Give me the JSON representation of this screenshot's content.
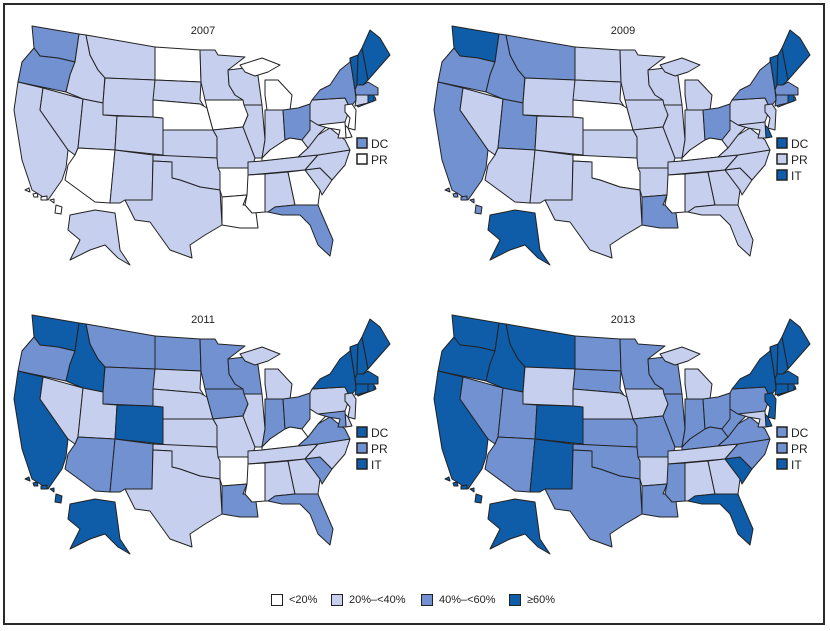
{
  "colors": {
    "lt20": "#ffffff",
    "20to40": "#c6d0ee",
    "40to60": "#7191d1",
    "ge60": "#0f5ca8",
    "border": "#222222"
  },
  "legend": [
    {
      "class": "lt20",
      "label": "<20%"
    },
    {
      "class": "20to40",
      "label": "20%–<40%"
    },
    {
      "class": "40to60",
      "label": "40%–<60%"
    },
    {
      "class": "ge60",
      "label": "≥60%"
    }
  ],
  "panels": [
    {
      "year": "2007",
      "extras": [
        {
          "label": "DC",
          "class": "40to60"
        },
        {
          "label": "PR",
          "class": "lt20"
        }
      ],
      "states": {
        "WA": "40to60",
        "OR": "40to60",
        "CA": "20to40",
        "NV": "20to40",
        "ID": "20to40",
        "MT": "20to40",
        "WY": "20to40",
        "UT": "20to40",
        "AZ": "lt20",
        "CO": "20to40",
        "NM": "20to40",
        "ND": "lt20",
        "SD": "20to40",
        "NE": "lt20",
        "KS": "20to40",
        "OK": "20to40",
        "TX": "20to40",
        "MN": "20to40",
        "IA": "lt20",
        "MO": "20to40",
        "AR": "lt20",
        "LA": "lt20",
        "WI": "20to40",
        "IL": "20to40",
        "MI": "lt20",
        "IN": "20to40",
        "OH": "40to60",
        "KY": "lt20",
        "TN": "20to40",
        "MS": "lt20",
        "AL": "20to40",
        "GA": "lt20",
        "FL": "40to60",
        "SC": "20to40",
        "NC": "20to40",
        "VA": "20to40",
        "WV": "20to40",
        "PA": "20to40",
        "NY": "40to60",
        "VT": "ge60",
        "NH": "ge60",
        "ME": "ge60",
        "MA": "40to60",
        "RI": "ge60",
        "CT": "20to40",
        "NJ": "lt20",
        "DE": "lt20",
        "MD": "lt20",
        "AK": "20to40",
        "HI": "lt20"
      }
    },
    {
      "year": "2009",
      "extras": [
        {
          "label": "DC",
          "class": "ge60"
        },
        {
          "label": "PR",
          "class": "20to40"
        },
        {
          "label": "IT",
          "class": "ge60"
        }
      ],
      "states": {
        "WA": "ge60",
        "OR": "40to60",
        "CA": "40to60",
        "NV": "20to40",
        "ID": "40to60",
        "MT": "40to60",
        "WY": "20to40",
        "UT": "40to60",
        "AZ": "20to40",
        "CO": "20to40",
        "NM": "20to40",
        "ND": "20to40",
        "SD": "20to40",
        "NE": "lt20",
        "KS": "20to40",
        "OK": "lt20",
        "TX": "20to40",
        "MN": "20to40",
        "IA": "20to40",
        "MO": "20to40",
        "AR": "20to40",
        "LA": "40to60",
        "WI": "20to40",
        "IL": "20to40",
        "MI": "20to40",
        "IN": "20to40",
        "OH": "40to60",
        "KY": "lt20",
        "TN": "20to40",
        "MS": "lt20",
        "AL": "20to40",
        "GA": "20to40",
        "FL": "20to40",
        "SC": "20to40",
        "NC": "20to40",
        "VA": "20to40",
        "WV": "20to40",
        "PA": "20to40",
        "NY": "40to60",
        "VT": "ge60",
        "NH": "ge60",
        "ME": "ge60",
        "MA": "40to60",
        "RI": "ge60",
        "CT": "40to60",
        "NJ": "20to40",
        "DE": "ge60",
        "MD": "20to40",
        "AK": "ge60",
        "HI": "40to60"
      }
    },
    {
      "year": "2011",
      "extras": [
        {
          "label": "DC",
          "class": "ge60"
        },
        {
          "label": "PR",
          "class": "40to60"
        },
        {
          "label": "IT",
          "class": "ge60"
        }
      ],
      "states": {
        "WA": "ge60",
        "OR": "40to60",
        "CA": "ge60",
        "NV": "20to40",
        "ID": "ge60",
        "MT": "40to60",
        "WY": "40to60",
        "UT": "20to40",
        "AZ": "40to60",
        "CO": "ge60",
        "NM": "40to60",
        "ND": "40to60",
        "SD": "20to40",
        "NE": "20to40",
        "KS": "20to40",
        "OK": "20to40",
        "TX": "20to40",
        "MN": "40to60",
        "IA": "40to60",
        "MO": "20to40",
        "AR": "lt20",
        "LA": "40to60",
        "WI": "40to60",
        "IL": "20to40",
        "MI": "20to40",
        "IN": "40to60",
        "OH": "40to60",
        "KY": "lt20",
        "TN": "20to40",
        "MS": "lt20",
        "AL": "20to40",
        "GA": "20to40",
        "FL": "40to60",
        "SC": "40to60",
        "NC": "20to40",
        "VA": "40to60",
        "WV": "lt20",
        "PA": "20to40",
        "NY": "ge60",
        "VT": "ge60",
        "NH": "ge60",
        "ME": "ge60",
        "MA": "ge60",
        "RI": "ge60",
        "CT": "ge60",
        "NJ": "20to40",
        "DE": "20to40",
        "MD": "40to60",
        "AK": "ge60",
        "HI": "ge60"
      }
    },
    {
      "year": "2013",
      "extras": [
        {
          "label": "DC",
          "class": "40to60"
        },
        {
          "label": "PR",
          "class": "40to60"
        },
        {
          "label": "IT",
          "class": "ge60"
        }
      ],
      "states": {
        "WA": "ge60",
        "OR": "ge60",
        "CA": "ge60",
        "NV": "40to60",
        "ID": "ge60",
        "MT": "ge60",
        "WY": "20to40",
        "UT": "40to60",
        "AZ": "40to60",
        "CO": "ge60",
        "NM": "ge60",
        "ND": "40to60",
        "SD": "40to60",
        "NE": "20to40",
        "KS": "40to60",
        "OK": "40to60",
        "TX": "40to60",
        "MN": "40to60",
        "IA": "20to40",
        "MO": "40to60",
        "AR": "20to40",
        "LA": "40to60",
        "WI": "40to60",
        "IL": "40to60",
        "MI": "20to40",
        "IN": "40to60",
        "OH": "40to60",
        "KY": "40to60",
        "TN": "20to40",
        "MS": "40to60",
        "AL": "20to40",
        "GA": "20to40",
        "FL": "ge60",
        "SC": "ge60",
        "NC": "40to60",
        "VA": "40to60",
        "WV": "40to60",
        "PA": "40to60",
        "NY": "ge60",
        "VT": "ge60",
        "NH": "ge60",
        "ME": "ge60",
        "MA": "ge60",
        "RI": "ge60",
        "CT": "ge60",
        "NJ": "ge60",
        "DE": "ge60",
        "MD": "20to40",
        "AK": "ge60",
        "HI": "ge60"
      }
    }
  ]
}
